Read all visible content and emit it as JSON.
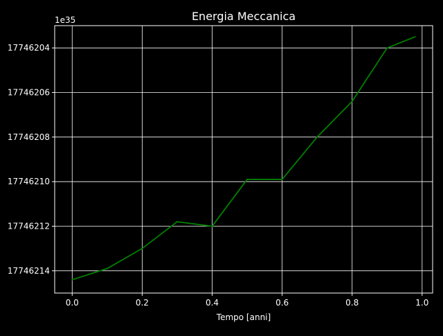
{
  "chart_data": {
    "type": "line",
    "title": "Energia Meccanica",
    "xlabel": "Tempo [anni]",
    "ylabel": "",
    "offset_label": "1e35",
    "xlim": [
      -0.05,
      1.03
    ],
    "ylim": [
      -1.7746215e+35,
      -1.7746203e+35
    ],
    "x_ticks": [
      0.0,
      0.2,
      0.4,
      0.6,
      0.8,
      1.0
    ],
    "x_tick_labels": [
      "0.0",
      "0.2",
      "0.4",
      "0.6",
      "0.8",
      "1.0"
    ],
    "y_ticks": [
      -1.7746204e+35,
      -1.7746206e+35,
      -1.7746208e+35,
      -1.774621e+35,
      -1.7746212e+35,
      -1.7746214e+35
    ],
    "y_tick_labels": [
      "17746204",
      "17746206",
      "17746208",
      "17746210",
      "17746212",
      "17746214"
    ],
    "grid": true,
    "series": [
      {
        "color": "#008000",
        "x": [
          0.0,
          0.1,
          0.2,
          0.3,
          0.4,
          0.5,
          0.6,
          0.7,
          0.8,
          0.9,
          0.98
        ],
        "y": [
          -1.77462144e+35,
          -1.77462139e+35,
          -1.7746213e+35,
          -1.77462118e+35,
          -1.7746212e+35,
          -1.77462099e+35,
          -1.77462099e+35,
          -1.7746208e+35,
          -1.77462064e+35,
          -1.7746204e+35,
          -1.77462035e+35
        ]
      }
    ]
  },
  "colors": {
    "background": "#000000",
    "axes": "#ffffff",
    "grid": "#ffffff",
    "text": "#ffffff",
    "line": "#008000"
  }
}
